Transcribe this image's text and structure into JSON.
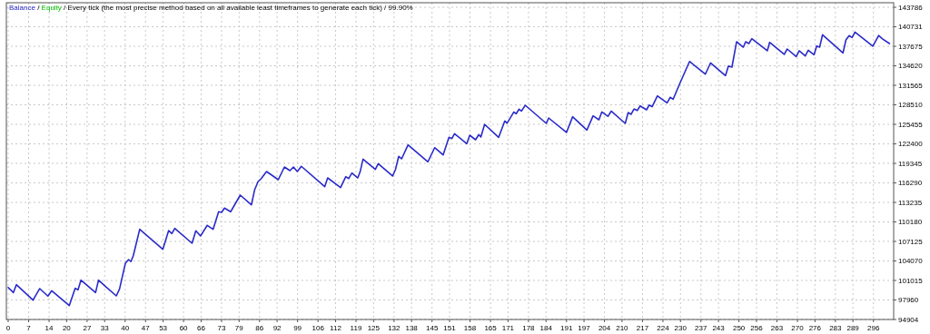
{
  "chart_data": {
    "type": "line",
    "annotations": [
      "/"
    ],
    "title": "/ Every tick (the most precise method based on all available least timeframes to generate each tick) / 99.90%",
    "x": [
      0,
      1.8,
      2.8,
      8.5,
      10.8,
      13.6,
      14.9,
      20.9,
      22.9,
      23.9,
      24.9,
      29.9,
      30.9,
      33.2,
      37,
      38.1,
      40.1,
      41.2,
      42,
      42.8,
      45,
      52.9,
      54.9,
      56,
      57,
      62.9,
      64.2,
      65.8,
      68.1,
      70.1,
      72,
      73,
      74,
      76.1,
      79.4,
      83.2,
      84.3,
      85.5,
      86.5,
      88.4,
      92.4,
      94.5,
      96.4,
      97.6,
      98.9,
      100.3,
      108.3,
      109.3,
      113.7,
      115.5,
      116.5,
      117.6,
      119.6,
      120.4,
      121.4,
      125.6,
      126.6,
      131.5,
      132.5,
      133.6,
      134.6,
      136.8,
      143.6,
      145.9,
      148.8,
      150.8,
      151.8,
      152.7,
      156.9,
      157.9,
      159.9,
      161,
      161.7,
      163,
      167.8,
      169.9,
      170.7,
      173,
      173.8,
      174.8,
      175.6,
      176.9,
      184.1,
      184.9,
      191,
      193.1,
      198,
      200.1,
      202.1,
      203.1,
      205.2,
      206.3,
      211.1,
      212.1,
      213.1,
      214.1,
      215.2,
      216.2,
      218.4,
      219.3,
      220.3,
      222.1,
      225.4,
      226.5,
      227.5,
      229.8,
      233.1,
      238.5,
      240.3,
      245.4,
      246.4,
      247.6,
      249.2,
      251.5,
      252.3,
      253.4,
      254.4,
      259.7,
      260.5,
      265.5,
      266.5,
      269.6,
      270.6,
      272.7,
      273.7,
      275.7,
      276.6,
      277.6,
      278.6,
      285.6,
      286.6,
      287.7,
      288.7,
      289.7,
      295.8,
      297.8,
      299,
      301.5
    ],
    "series": [
      {
        "name": "Balance",
        "color": "#2a2ac8",
        "values": [
          99920,
          99120,
          100350,
          97930,
          99740,
          98560,
          99410,
          97080,
          99780,
          99550,
          101060,
          99120,
          101060,
          100120,
          98600,
          99690,
          103710,
          104280,
          103960,
          104890,
          109020,
          105890,
          108830,
          108360,
          109160,
          106840,
          108790,
          107980,
          109640,
          109020,
          111770,
          111670,
          112340,
          111770,
          114370,
          112850,
          115180,
          116500,
          116930,
          118070,
          116790,
          118780,
          118210,
          118780,
          118070,
          118880,
          115690,
          117070,
          115550,
          117260,
          116970,
          117830,
          117070,
          118020,
          120010,
          118390,
          119300,
          117360,
          118390,
          120440,
          120060,
          122230,
          119590,
          121800,
          120670,
          123420,
          123230,
          123990,
          122430,
          123750,
          123040,
          123850,
          123470,
          125460,
          123420,
          125980,
          125640,
          127400,
          127120,
          127830,
          127540,
          128440,
          125600,
          126450,
          124180,
          126640,
          124560,
          126780,
          126170,
          127400,
          126710,
          127520,
          125600,
          127300,
          127020,
          127870,
          127630,
          128340,
          127730,
          128480,
          128200,
          129900,
          128820,
          129680,
          129390,
          131890,
          135300,
          133310,
          135080,
          133090,
          134590,
          134410,
          138390,
          137530,
          138390,
          138100,
          138860,
          136970,
          138290,
          136400,
          137250,
          136070,
          136970,
          136160,
          137070,
          136360,
          137720,
          137530,
          139480,
          136640,
          138670,
          139340,
          139050,
          139910,
          137680,
          139380,
          138860,
          138100
        ]
      },
      {
        "name": "Equity",
        "color": "#00c000",
        "values": [
          null,
          null,
          null,
          null,
          null,
          null,
          null,
          null,
          null,
          null,
          null,
          null,
          null,
          null,
          null,
          null,
          null,
          null,
          null,
          null,
          null,
          null,
          null,
          null,
          null,
          null,
          null,
          null,
          null,
          null,
          null,
          null,
          null,
          null,
          null,
          null,
          null,
          null,
          null,
          null,
          null,
          null,
          null,
          null,
          null,
          null,
          null,
          null,
          null,
          null,
          null,
          null,
          null,
          null,
          null,
          null,
          null,
          null,
          null,
          null,
          null,
          null,
          null,
          null,
          null,
          null,
          null,
          null,
          null,
          null,
          null,
          null,
          null,
          null,
          null,
          null,
          null,
          null,
          null,
          null,
          null,
          null,
          null,
          null,
          null,
          null,
          null,
          null,
          null,
          null,
          null,
          null,
          null,
          null,
          null,
          null,
          null,
          null,
          null,
          null,
          null,
          null,
          null,
          null,
          null,
          null,
          null,
          null,
          null,
          null,
          null,
          null,
          null,
          null,
          null,
          null,
          null,
          null,
          null,
          null,
          null,
          null,
          null,
          null,
          null,
          null,
          null,
          null,
          null,
          null,
          null,
          null,
          null,
          null,
          null,
          null,
          null,
          null
        ]
      }
    ],
    "xlim": [
      0,
      302
    ],
    "xticks": [
      0,
      7,
      14,
      20,
      27,
      33,
      40,
      47,
      53,
      60,
      66,
      73,
      79,
      86,
      92,
      99,
      106,
      112,
      119,
      125,
      132,
      138,
      145,
      151,
      158,
      165,
      171,
      178,
      184,
      191,
      197,
      204,
      210,
      217,
      224,
      230,
      237,
      243,
      250,
      256,
      263,
      270,
      276,
      283,
      289,
      296
    ],
    "ylim": [
      94904,
      143786
    ],
    "yticks": [
      94904,
      97960,
      101015,
      104070,
      107125,
      110180,
      113235,
      116290,
      119345,
      122400,
      125455,
      128510,
      131565,
      134620,
      137675,
      140731,
      143786
    ],
    "grid": true,
    "legend": "top left"
  }
}
